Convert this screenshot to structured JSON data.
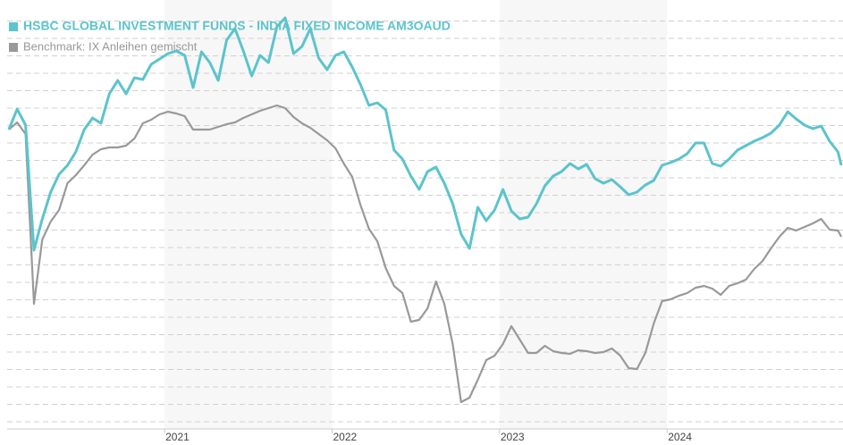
{
  "chart_data": {
    "type": "line",
    "x": [
      2020.07,
      2020.12,
      2020.17,
      2020.22,
      2020.27,
      2020.32,
      2020.37,
      2020.42,
      2020.47,
      2020.52,
      2020.57,
      2020.62,
      2020.67,
      2020.72,
      2020.77,
      2020.82,
      2020.87,
      2020.92,
      2020.97,
      2021.02,
      2021.07,
      2021.12,
      2021.17,
      2021.22,
      2021.27,
      2021.32,
      2021.37,
      2021.42,
      2021.47,
      2021.52,
      2021.57,
      2021.62,
      2021.67,
      2021.72,
      2021.77,
      2021.82,
      2021.87,
      2021.92,
      2021.97,
      2022.02,
      2022.07,
      2022.12,
      2022.17,
      2022.22,
      2022.27,
      2022.32,
      2022.37,
      2022.42,
      2022.47,
      2022.52,
      2022.57,
      2022.62,
      2022.67,
      2022.72,
      2022.77,
      2022.82,
      2022.87,
      2022.92,
      2022.97,
      2023.02,
      2023.07,
      2023.12,
      2023.17,
      2023.22,
      2023.27,
      2023.32,
      2023.37,
      2023.42,
      2023.47,
      2023.52,
      2023.57,
      2023.62,
      2023.67,
      2023.72,
      2023.77,
      2023.82,
      2023.87,
      2023.92,
      2023.97,
      2024.02,
      2024.07,
      2024.12,
      2024.17,
      2024.22,
      2024.27,
      2024.32,
      2024.37,
      2024.42,
      2024.47,
      2024.52,
      2024.57,
      2024.62,
      2024.67,
      2024.72,
      2024.77,
      2024.82,
      2024.87,
      2024.92,
      2024.97,
      2025.02,
      2025.04
    ],
    "series": [
      {
        "name": "HSBC GLOBAL INVESTMENT FUNDS - INDIA FIXED INCOME AM3OAUD",
        "color": "#5bc4cc",
        "values": [
          327,
          350,
          332,
          192,
          227,
          257,
          277,
          287,
          302,
          327,
          340,
          334,
          367,
          382,
          367,
          385,
          383,
          400,
          406,
          412,
          415,
          410,
          374,
          414,
          402,
          382,
          427,
          440,
          415,
          387,
          410,
          402,
          442,
          452,
          412,
          420,
          440,
          407,
          394,
          410,
          414,
          397,
          377,
          354,
          357,
          349,
          304,
          294,
          275,
          260,
          280,
          285,
          267,
          244,
          210,
          194,
          240,
          225,
          237,
          260,
          236,
          227,
          229,
          244,
          264,
          275,
          280,
          289,
          283,
          288,
          272,
          267,
          271,
          263,
          254,
          257,
          265,
          270,
          287,
          290,
          294,
          300,
          312,
          312,
          289,
          286,
          294,
          304,
          309,
          314,
          318,
          323,
          332,
          347,
          339,
          332,
          328,
          331,
          314,
          302,
          287
        ]
      },
      {
        "name": "Benchmark: IX Anleihen gemischt",
        "color": "#999999",
        "values": [
          327,
          335,
          322,
          132,
          204,
          224,
          237,
          267,
          276,
          287,
          299,
          305,
          307,
          307,
          309,
          317,
          334,
          338,
          344,
          347,
          345,
          342,
          327,
          327,
          327,
          330,
          333,
          335,
          340,
          344,
          348,
          351,
          354,
          351,
          341,
          334,
          329,
          322,
          315,
          306,
          289,
          274,
          242,
          216,
          202,
          172,
          152,
          144,
          112,
          114,
          127,
          157,
          132,
          87,
          22,
          27,
          47,
          69,
          74,
          87,
          107,
          92,
          77,
          77,
          85,
          79,
          77,
          76,
          80,
          79,
          77,
          78,
          82,
          74,
          60,
          59,
          77,
          110,
          135,
          137,
          141,
          144,
          150,
          152,
          149,
          142,
          152,
          155,
          159,
          171,
          180,
          194,
          207,
          217,
          214,
          218,
          222,
          227,
          215,
          214,
          207
        ]
      }
    ],
    "xlim": [
      2020.06,
      2025.05
    ],
    "xticks": [
      2021,
      2022,
      2023,
      2024
    ],
    "ylim": [
      -8,
      472
    ],
    "yticks": [
      0,
      19.5,
      39,
      58.5,
      78,
      97.5,
      117,
      136.5,
      156,
      175.5,
      195,
      214.5,
      234,
      253.5,
      273,
      292.5,
      312,
      331.5,
      351,
      370.5,
      390,
      409.5,
      429,
      448.5
    ],
    "grid": true
  }
}
